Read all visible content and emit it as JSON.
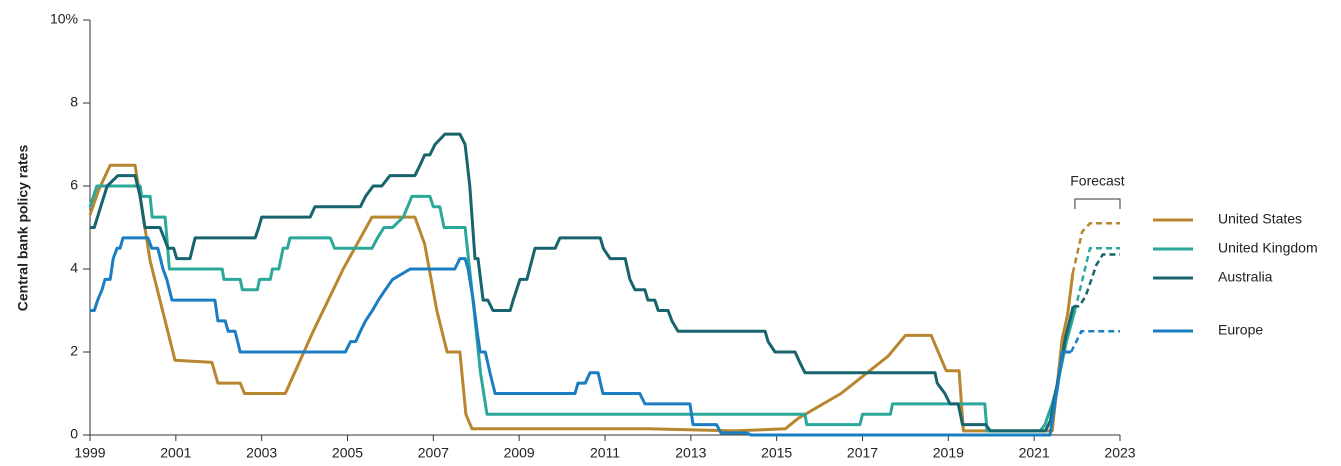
{
  "chart_data": {
    "type": "line",
    "ylabel": "Central bank policy rates",
    "xlim": [
      1999,
      2023
    ],
    "xticks": [
      1999,
      2001,
      2003,
      2005,
      2007,
      2009,
      2011,
      2013,
      2015,
      2017,
      2019,
      2021,
      2023
    ],
    "ylim": [
      0,
      10
    ],
    "yticks": [
      0,
      2,
      4,
      6,
      8,
      {
        "value": 10,
        "label": "10%"
      }
    ],
    "grid": false,
    "legend": "right",
    "annotations": [
      {
        "text": "Forecast",
        "x": [
          2021.95,
          2023
        ]
      }
    ],
    "series": [
      {
        "name": "United States",
        "color": "#b8862f",
        "x": [
          1999,
          1999.2,
          1999.47,
          2000.05,
          2000.4,
          2000.98,
          2001.84,
          2001.98,
          2002.5,
          2002.6,
          2003.55,
          2004.2,
          2004.9,
          2005.57,
          2006.57,
          2006.8,
          2007.08,
          2007.32,
          2007.62,
          2007.76,
          2007.9,
          2010,
          2012,
          2014,
          2015.2,
          2015.5,
          2016.5,
          2017.6,
          2018.0,
          2018.6,
          2018.95,
          2019.25,
          2019.35,
          2021.42,
          2021.65,
          2021.78,
          2021.9
        ],
        "values": [
          5.3,
          5.9,
          6.5,
          6.5,
          4.2,
          1.8,
          1.75,
          1.25,
          1.25,
          1.0,
          1.0,
          2.5,
          4.0,
          5.25,
          5.25,
          4.6,
          3.0,
          2.0,
          2.0,
          0.5,
          0.15,
          0.15,
          0.15,
          0.1,
          0.15,
          0.4,
          1.0,
          1.9,
          2.4,
          2.4,
          1.55,
          1.55,
          0.1,
          0.1,
          2.3,
          2.9,
          3.9
        ],
        "forecast": {
          "x": [
            2021.9,
            2022.12,
            2022.3,
            2023
          ],
          "values": [
            3.9,
            4.9,
            5.1,
            5.1
          ]
        }
      },
      {
        "name": "United Kingdom",
        "color": "#2ba89a",
        "x": [
          1999,
          1999.16,
          2000.17,
          2000.2,
          2000.4,
          2000.45,
          2000.75,
          2000.85,
          2002.08,
          2002.12,
          2002.5,
          2002.55,
          2002.9,
          2002.95,
          2003.2,
          2003.25,
          2003.4,
          2003.5,
          2003.6,
          2003.66,
          2004.6,
          2004.7,
          2005.57,
          2005.7,
          2005.85,
          2006.05,
          2006.3,
          2006.5,
          2006.92,
          2007.0,
          2007.15,
          2007.25,
          2007.74,
          2007.95,
          2008.1,
          2008.25,
          2015.66,
          2015.7,
          2016.94,
          2017.0,
          2017.65,
          2017.7,
          2019.85,
          2019.9,
          2021.14,
          2021.25,
          2021.42,
          2021.55,
          2021.75,
          2021.95
        ],
        "values": [
          5.5,
          6,
          6,
          5.75,
          5.75,
          5.25,
          5.25,
          4,
          4,
          3.75,
          3.75,
          3.5,
          3.5,
          3.75,
          3.75,
          4,
          4,
          4.5,
          4.5,
          4.75,
          4.75,
          4.5,
          4.5,
          4.75,
          5,
          5,
          5.25,
          5.75,
          5.75,
          5.5,
          5.5,
          5,
          5,
          3,
          1.5,
          0.5,
          0.5,
          0.25,
          0.25,
          0.5,
          0.5,
          0.75,
          0.75,
          0.1,
          0.1,
          0.25,
          0.75,
          1.25,
          2.25,
          3
        ],
        "forecast": {
          "x": [
            2021.95,
            2022.3,
            2023
          ],
          "values": [
            3,
            4.5,
            4.5
          ]
        }
      },
      {
        "name": "Australia",
        "color": "#18646e",
        "x": [
          1999,
          1999.1,
          1999.25,
          1999.4,
          1999.65,
          2000.05,
          2000.17,
          2000.28,
          2000.63,
          2000.82,
          2000.95,
          2001.02,
          2001.33,
          2001.45,
          2002.85,
          2002.93,
          2003.0,
          2004.13,
          2004.24,
          2005.3,
          2005.42,
          2005.6,
          2005.8,
          2005.99,
          2006.57,
          2006.69,
          2006.8,
          2006.92,
          2007.04,
          2007.27,
          2007.62,
          2007.74,
          2007.85,
          2007.97,
          2008.04,
          2008.16,
          2008.27,
          2008.39,
          2008.79,
          2008.86,
          2009.02,
          2009.18,
          2009.37,
          2009.84,
          2009.95,
          2010.89,
          2010.96,
          2011.12,
          2011.47,
          2011.58,
          2011.7,
          2011.93,
          2012.0,
          2012.16,
          2012.24,
          2012.47,
          2012.56,
          2012.7,
          2014.73,
          2014.8,
          2014.96,
          2015.43,
          2015.54,
          2015.66,
          2018.69,
          2018.74,
          2018.92,
          2019.04,
          2019.23,
          2019.33,
          2019.87,
          2019.98,
          2021.26,
          2021.38,
          2021.56,
          2021.73,
          2021.91
        ],
        "values": [
          5,
          5,
          5.5,
          6,
          6.25,
          6.25,
          5.75,
          5,
          5,
          4.5,
          4.5,
          4.25,
          4.25,
          4.75,
          4.75,
          5,
          5.25,
          5.25,
          5.5,
          5.5,
          5.75,
          6,
          6,
          6.25,
          6.25,
          6.5,
          6.75,
          6.75,
          7,
          7.25,
          7.25,
          7,
          6,
          4.25,
          4.25,
          3.25,
          3.25,
          3,
          3,
          3.25,
          3.75,
          3.75,
          4.5,
          4.5,
          4.75,
          4.75,
          4.5,
          4.25,
          4.25,
          3.75,
          3.5,
          3.5,
          3.25,
          3.25,
          3,
          3,
          2.75,
          2.5,
          2.5,
          2.25,
          2,
          2,
          1.75,
          1.5,
          1.5,
          1.25,
          1,
          0.75,
          0.75,
          0.25,
          0.25,
          0.1,
          0.1,
          0.35,
          1.35,
          2.35,
          3.1
        ],
        "forecast": {
          "x": [
            2021.91,
            2022.05,
            2022.2,
            2022.45,
            2022.6,
            2023
          ],
          "values": [
            3.1,
            3.1,
            3.35,
            4.1,
            4.35,
            4.35
          ]
        }
      },
      {
        "name": "Europe",
        "color": "#1b7dc2",
        "x": [
          1999,
          1999.1,
          1999.18,
          1999.28,
          1999.35,
          1999.47,
          1999.54,
          1999.63,
          1999.7,
          1999.77,
          2000.35,
          2000.44,
          2000.58,
          2000.7,
          2000.79,
          2000.91,
          2001.91,
          2001.98,
          2002.15,
          2002.22,
          2002.38,
          2002.5,
          2004.95,
          2005.07,
          2005.19,
          2005.3,
          2005.42,
          2005.58,
          2005.72,
          2005.88,
          2006.05,
          2006.46,
          2007.5,
          2007.62,
          2007.74,
          2007.81,
          2007.93,
          2008.02,
          2008.09,
          2008.21,
          2008.32,
          2008.44,
          2010.3,
          2010.37,
          2010.54,
          2010.65,
          2010.84,
          2010.95,
          2011.81,
          2011.93,
          2012.98,
          2013.05,
          2013.6,
          2013.7,
          2014.3,
          2014.4,
          2021.37,
          2021.44,
          2021.56,
          2021.65,
          2021.86
        ],
        "values": [
          3,
          3,
          3.25,
          3.5,
          3.75,
          3.75,
          4.25,
          4.5,
          4.5,
          4.75,
          4.75,
          4.5,
          4.5,
          4,
          3.75,
          3.25,
          3.25,
          2.75,
          2.75,
          2.5,
          2.5,
          2,
          2,
          2.25,
          2.25,
          2.5,
          2.75,
          3,
          3.25,
          3.5,
          3.75,
          4,
          4,
          4.25,
          4.25,
          4,
          3.25,
          2.5,
          2,
          2,
          1.5,
          1,
          1,
          1.25,
          1.25,
          1.5,
          1.5,
          1,
          1,
          0.75,
          0.75,
          0.25,
          0.25,
          0.05,
          0.05,
          0,
          0,
          0.5,
          1.25,
          2,
          2
        ],
        "forecast": {
          "x": [
            2021.86,
            2022.1,
            2023
          ],
          "values": [
            2,
            2.5,
            2.5
          ]
        }
      }
    ]
  }
}
